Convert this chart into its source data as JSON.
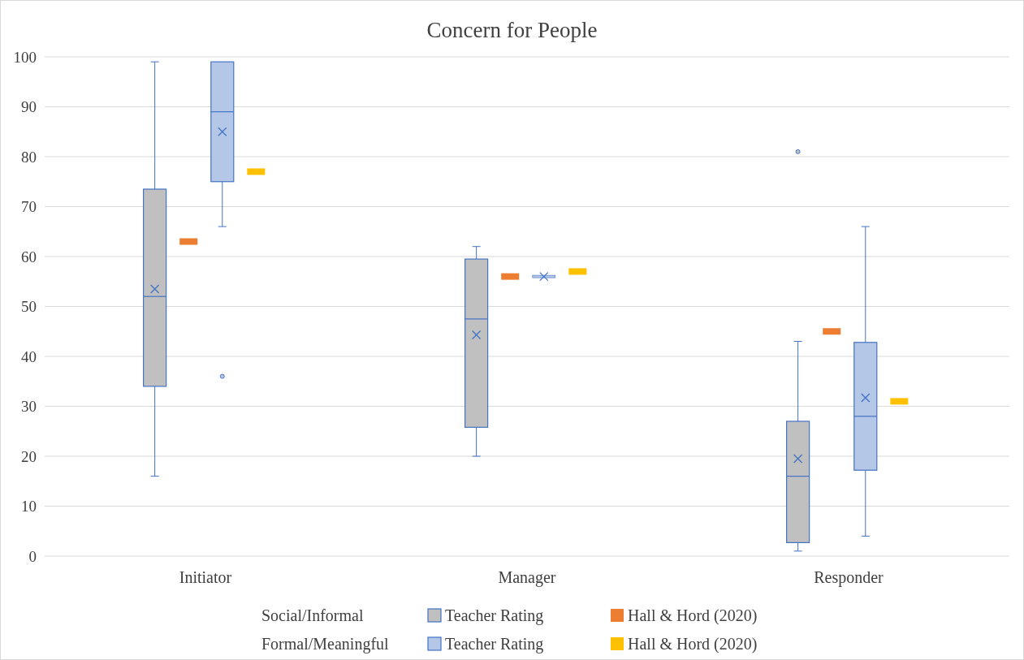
{
  "chart_data": {
    "type": "box",
    "title": "Concern for People",
    "categories": [
      "Initiator",
      "Manager",
      "Responder"
    ],
    "ylim": [
      0,
      100
    ],
    "yticks": [
      0,
      10,
      20,
      30,
      40,
      50,
      60,
      70,
      80,
      90,
      100
    ],
    "grid": "y",
    "legend": "bottom",
    "annotations": [
      "Social/Informal",
      "Formal/Meaningful"
    ],
    "series": [
      {
        "name": "Teacher Rating",
        "color": "#c0c0c0",
        "boxes": [
          {
            "low": 16,
            "q1": 34,
            "median": 52,
            "q3": 73.5,
            "high": 99,
            "mean": 53.5
          },
          {
            "low": 20,
            "q1": 25.8,
            "median": 47.5,
            "q3": 59.5,
            "high": 62,
            "mean": 44.3
          },
          {
            "low": 1,
            "q1": 2.7,
            "median": 16,
            "q3": 27,
            "high": 43,
            "mean": 19.5,
            "outliers": [
              81
            ]
          }
        ]
      },
      {
        "name": "Hall & Hord (2020)",
        "type": "scatter",
        "marker": "square",
        "color": "#ed7d31",
        "x": [
          "Initiator",
          "Manager",
          "Responder"
        ],
        "values": [
          63,
          56,
          45
        ]
      },
      {
        "name": "Teacher Rating",
        "color": "#b4c7e7",
        "boxes": [
          {
            "low": 66,
            "q1": 75,
            "median": 89,
            "q3": 99,
            "high": 99,
            "mean": 85,
            "outliers": [
              36
            ]
          },
          {
            "low": 56,
            "q1": 56,
            "median": 56,
            "q3": 56,
            "high": 56,
            "mean": 56
          },
          {
            "low": 4,
            "q1": 17.2,
            "median": 28,
            "q3": 42.8,
            "high": 66,
            "mean": 31.7
          }
        ]
      },
      {
        "name": "Hall & Hord (2020)",
        "type": "scatter",
        "marker": "square",
        "color": "#ffc000",
        "x": [
          "Initiator",
          "Manager",
          "Responder"
        ],
        "values": [
          77,
          57,
          31
        ]
      }
    ]
  }
}
